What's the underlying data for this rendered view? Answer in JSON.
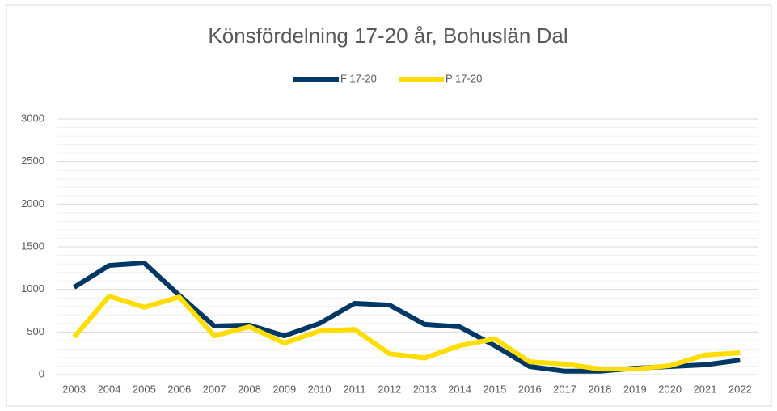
{
  "chart_data": {
    "type": "line",
    "title": "Könsfördelning 17-20 år, Bohuslän Dal",
    "categories": [
      "2003",
      "2004",
      "2005",
      "2006",
      "2007",
      "2008",
      "2009",
      "2010",
      "2011",
      "2012",
      "2013",
      "2014",
      "2015",
      "2016",
      "2017",
      "2018",
      "2019",
      "2020",
      "2021",
      "2022"
    ],
    "series": [
      {
        "name": "F 17-20",
        "color": "#003865",
        "values": [
          1025,
          1281,
          1310,
          930,
          570,
          580,
          455,
          600,
          835,
          815,
          590,
          560,
          340,
          95,
          40,
          40,
          75,
          95,
          115,
          170
        ]
      },
      {
        "name": "P 17-20",
        "color": "#ffdd00",
        "values": [
          440,
          920,
          790,
          910,
          455,
          560,
          370,
          510,
          530,
          245,
          195,
          340,
          420,
          150,
          125,
          65,
          65,
          105,
          230,
          255
        ]
      }
    ],
    "ylim": [
      0,
      3000
    ],
    "yticks": [
      0,
      500,
      1000,
      1500,
      2000,
      2500,
      3000
    ],
    "grid": true,
    "minor_grid": true,
    "legend": "top"
  }
}
